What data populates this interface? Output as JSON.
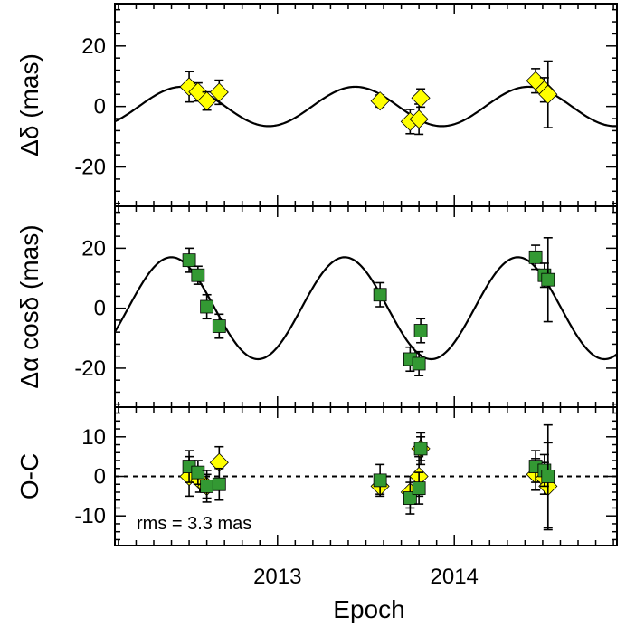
{
  "chart_data": {
    "type": "scatter",
    "xlabel": "Epoch",
    "x_ticks": [
      2013,
      2014
    ],
    "xlim": [
      2012.08,
      2014.92
    ],
    "panels": [
      {
        "id": "dec",
        "ylabel": "Δδ (mas)",
        "ylim": [
          -33,
          34
        ],
        "y_ticks": [
          20,
          0,
          -20
        ],
        "model": {
          "amplitude": 6.5,
          "period": 0.98,
          "phase_epoch": 2012.46,
          "offset": 0
        },
        "series": [
          {
            "marker": "diamond",
            "color": "#ffff00",
            "points": [
              {
                "x": 2012.5,
                "y": 6.5,
                "err": 5
              },
              {
                "x": 2012.55,
                "y": 4.8,
                "err": 3
              },
              {
                "x": 2012.6,
                "y": 1.8,
                "err": 3
              },
              {
                "x": 2012.67,
                "y": 4.7,
                "err": 4
              },
              {
                "x": 2013.58,
                "y": 1.8,
                "err": 2
              },
              {
                "x": 2013.75,
                "y": -5.0,
                "err": 4
              },
              {
                "x": 2013.8,
                "y": -4.2,
                "err": 5
              },
              {
                "x": 2013.81,
                "y": 2.8,
                "err": 3
              },
              {
                "x": 2014.46,
                "y": 8.5,
                "err": 4
              },
              {
                "x": 2014.51,
                "y": 5.5,
                "err": 4
              },
              {
                "x": 2014.53,
                "y": 4.0,
                "err": 11
              }
            ]
          }
        ]
      },
      {
        "id": "ra",
        "ylabel": "Δα cosδ (mas)",
        "ylim": [
          -33,
          34
        ],
        "y_ticks": [
          20,
          0,
          -20
        ],
        "model": {
          "amplitude": 17,
          "period": 0.98,
          "phase_epoch": 2012.4,
          "offset": 0
        },
        "series": [
          {
            "marker": "square",
            "color": "#339933",
            "points": [
              {
                "x": 2012.5,
                "y": 16.0,
                "err": 4
              },
              {
                "x": 2012.55,
                "y": 11.0,
                "err": 3
              },
              {
                "x": 2012.6,
                "y": 0.5,
                "err": 4
              },
              {
                "x": 2012.67,
                "y": -6.0,
                "err": 4
              },
              {
                "x": 2013.58,
                "y": 4.5,
                "err": 4
              },
              {
                "x": 2013.75,
                "y": -17.0,
                "err": 4
              },
              {
                "x": 2013.8,
                "y": -18.5,
                "err": 4
              },
              {
                "x": 2013.81,
                "y": -7.5,
                "err": 4
              },
              {
                "x": 2014.46,
                "y": 17.0,
                "err": 4
              },
              {
                "x": 2014.51,
                "y": 11.0,
                "err": 4
              },
              {
                "x": 2014.53,
                "y": 9.5,
                "err": 14
              }
            ]
          }
        ]
      },
      {
        "id": "oc",
        "ylabel": "O-C",
        "ylim": [
          -17.5,
          17.5
        ],
        "y_ticks": [
          10,
          0,
          -10
        ],
        "zero_line": true,
        "annotation": "rms = 3.3 mas",
        "series": [
          {
            "marker": "diamond",
            "color": "#ffff00",
            "points": [
              {
                "x": 2012.5,
                "y": 0.0,
                "err": 5
              },
              {
                "x": 2012.56,
                "y": -1.0,
                "err": 3
              },
              {
                "x": 2012.6,
                "y": -2.5,
                "err": 3
              },
              {
                "x": 2012.67,
                "y": 3.5,
                "err": 4
              },
              {
                "x": 2013.58,
                "y": -2.5,
                "err": 2
              },
              {
                "x": 2013.75,
                "y": -4.0,
                "err": 4
              },
              {
                "x": 2013.8,
                "y": 0.0,
                "err": 5
              },
              {
                "x": 2013.81,
                "y": 7.0,
                "err": 3
              },
              {
                "x": 2014.46,
                "y": 0.5,
                "err": 4
              },
              {
                "x": 2014.51,
                "y": -0.5,
                "err": 4
              },
              {
                "x": 2014.53,
                "y": -2.5,
                "err": 11
              }
            ]
          },
          {
            "marker": "square",
            "color": "#339933",
            "points": [
              {
                "x": 2012.5,
                "y": 2.5,
                "err": 4
              },
              {
                "x": 2012.55,
                "y": 1.0,
                "err": 3
              },
              {
                "x": 2012.6,
                "y": -2.5,
                "err": 4
              },
              {
                "x": 2012.67,
                "y": -2.0,
                "err": 4
              },
              {
                "x": 2013.58,
                "y": -1.0,
                "err": 4
              },
              {
                "x": 2013.75,
                "y": -5.5,
                "err": 4
              },
              {
                "x": 2013.8,
                "y": -3.0,
                "err": 4
              },
              {
                "x": 2013.81,
                "y": 7.0,
                "err": 4
              },
              {
                "x": 2014.46,
                "y": 2.5,
                "err": 4
              },
              {
                "x": 2014.51,
                "y": 1.5,
                "err": 4
              },
              {
                "x": 2014.53,
                "y": 0.0,
                "err": 13
              }
            ]
          }
        ]
      }
    ]
  }
}
